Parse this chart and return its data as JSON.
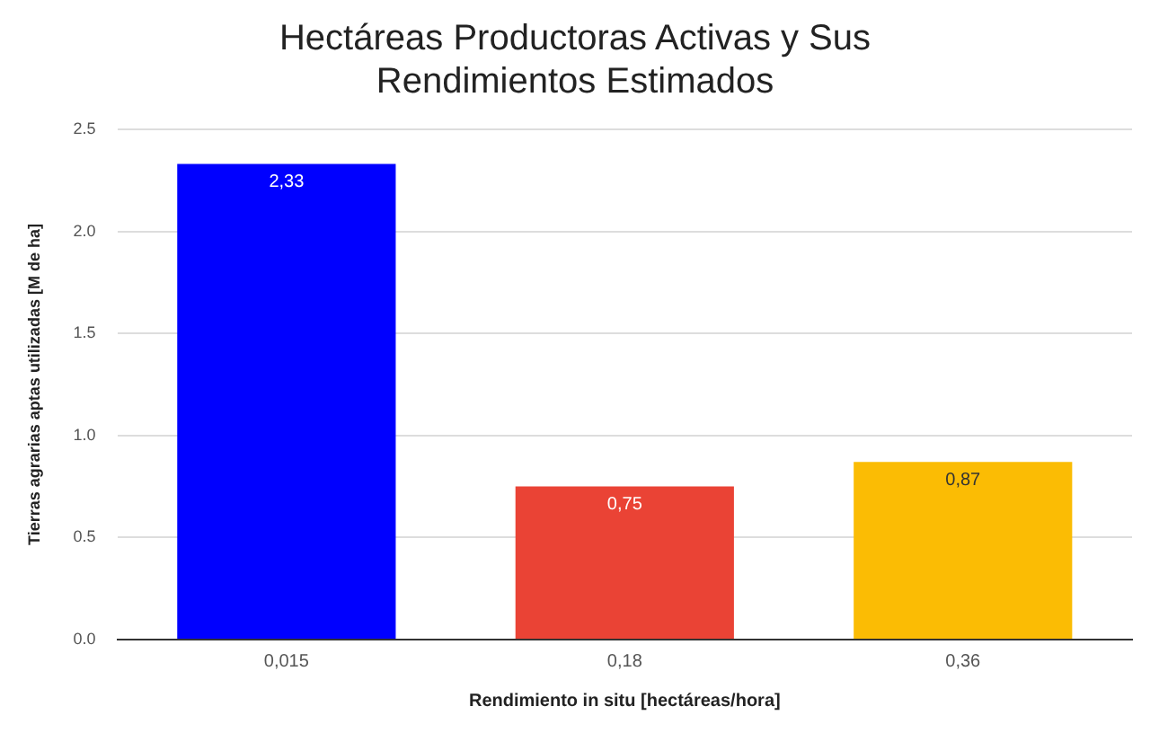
{
  "chart_data": {
    "type": "bar",
    "title": "Hectáreas Productoras Activas y Sus Rendimientos Estimados",
    "xlabel": "Rendimiento in situ [hectáreas/hora]",
    "ylabel": "Tierras agrarias aptas utilizadas [M de ha]",
    "categories": [
      "0,015",
      "0,18",
      "0,36"
    ],
    "values": [
      2.33,
      0.75,
      0.87
    ],
    "colors": [
      "#0000ff",
      "#ea4335",
      "#fbbc04"
    ],
    "value_labels": [
      "2,33",
      "0,75",
      "0,87"
    ],
    "ylim": [
      0,
      2.5
    ],
    "yticks": [
      {
        "value": 0,
        "label": "0.0"
      },
      {
        "value": 0.5,
        "label": "0.5"
      },
      {
        "value": 1,
        "label": "1.0"
      },
      {
        "value": 1.5,
        "label": "1.5"
      },
      {
        "value": 2,
        "label": "2.0"
      },
      {
        "value": 2.5,
        "label": "2.5"
      }
    ],
    "grid": "y"
  }
}
